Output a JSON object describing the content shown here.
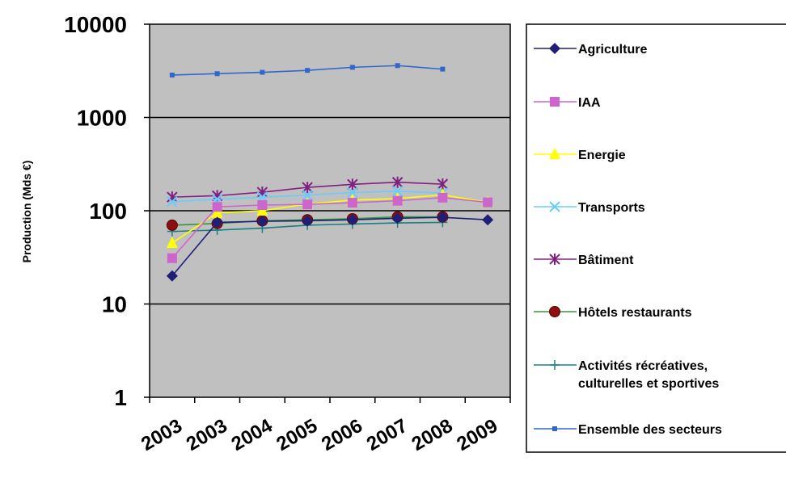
{
  "chart_data": {
    "type": "line",
    "title": "",
    "xlabel": "",
    "ylabel": "Production (Mds €)",
    "yscale": "log",
    "ylim": [
      1,
      10000
    ],
    "yticks": [
      "1",
      "10",
      "100",
      "1000",
      "10000"
    ],
    "categories": [
      "2003",
      "2003",
      "2004",
      "2005",
      "2006",
      "2007",
      "2008",
      "2009"
    ],
    "grid": "horizontal",
    "legend_position": "right",
    "plot_background": "#c0c0c0",
    "series": [
      {
        "name": "Agriculture",
        "color": "#1f1f7a",
        "marker": "diamond",
        "values": [
          20,
          75,
          77,
          78,
          80,
          83,
          85,
          80
        ]
      },
      {
        "name": "IAA",
        "color": "#cc66cc",
        "marker": "square",
        "values": [
          31,
          110,
          115,
          117,
          122,
          128,
          138,
          123
        ]
      },
      {
        "name": "Energie",
        "color": "#ffff00",
        "marker": "triangle",
        "values": [
          45,
          95,
          100,
          118,
          130,
          135,
          148,
          123
        ]
      },
      {
        "name": "Transports",
        "color": "#66ccff",
        "marker": "x",
        "values": [
          125,
          133,
          140,
          147,
          157,
          162,
          155,
          null
        ]
      },
      {
        "name": "Bâtiment",
        "color": "#802080",
        "marker": "star",
        "values": [
          140,
          145,
          158,
          178,
          192,
          202,
          193,
          null
        ]
      },
      {
        "name": "Hôtels restaurants",
        "color": "#339933",
        "marker": "circle",
        "values": [
          70,
          73,
          78,
          80,
          82,
          86,
          86,
          null
        ]
      },
      {
        "name": "Activités récréatives,\nculturelles et sportives",
        "color": "#1a8080",
        "marker": "plus",
        "values": [
          60,
          62,
          65,
          70,
          72,
          74,
          75,
          null
        ]
      },
      {
        "name": "Ensemble des secteurs",
        "color": "#3366cc",
        "marker": "small-square",
        "values": [
          2850,
          2950,
          3050,
          3200,
          3450,
          3600,
          3300,
          null
        ]
      }
    ]
  }
}
